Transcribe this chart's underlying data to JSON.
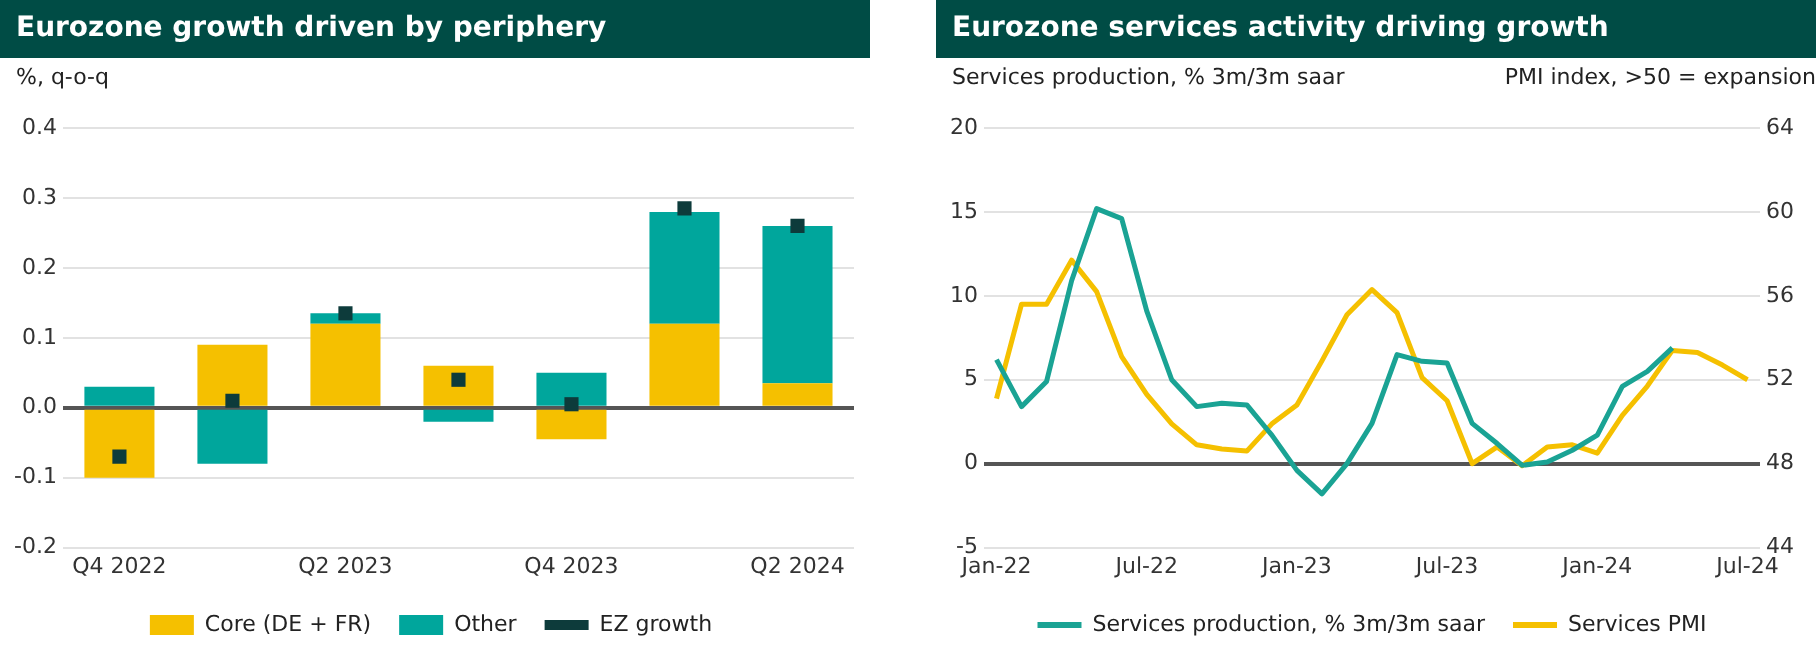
{
  "chart_data": [
    {
      "type": "bar",
      "title": "Eurozone growth driven by periphery",
      "ylabel": "%, q-o-q",
      "stacked": true,
      "categories": [
        "Q4 2022",
        null,
        "Q2 2023",
        null,
        "Q4 2023",
        null,
        "Q2 2024"
      ],
      "series": [
        {
          "name": "Core (DE + FR)",
          "color": "#f5c000",
          "values": [
            -0.1,
            0.09,
            0.12,
            0.06,
            -0.045,
            0.12,
            0.035
          ]
        },
        {
          "name": "Other",
          "color": "#00a69c",
          "values": [
            0.03,
            -0.08,
            0.015,
            -0.02,
            0.05,
            0.16,
            0.225
          ]
        },
        {
          "name": "EZ growth",
          "type": "scatter",
          "color": "#0d3b3b",
          "values": [
            -0.07,
            0.01,
            0.135,
            0.04,
            0.005,
            0.285,
            0.26
          ]
        }
      ],
      "ylim": [
        -0.2,
        0.4
      ],
      "yticks": [
        {
          "value": -0.2,
          "label": "-0.2"
        },
        {
          "value": -0.1,
          "label": "-0.1"
        },
        {
          "value": 0,
          "label": "0.0"
        },
        {
          "value": 0.1,
          "label": "0.1"
        },
        {
          "value": 0.2,
          "label": "0.2"
        },
        {
          "value": 0.3,
          "label": "0.3"
        },
        {
          "value": 0.4,
          "label": "0.4"
        }
      ],
      "grid": "y",
      "legend": "bottom",
      "marker": "square"
    },
    {
      "type": "line",
      "title": "Eurozone services activity driving growth",
      "ylabel": "Services production, % 3m/3m saar",
      "y2label": "PMI index, >50 = expansion",
      "categories": [
        "Jan-22",
        null,
        null,
        null,
        null,
        null,
        "Jul-22",
        null,
        null,
        null,
        null,
        null,
        "Jan-23",
        null,
        null,
        null,
        null,
        null,
        "Jul-23",
        null,
        null,
        null,
        null,
        null,
        "Jan-24",
        null,
        null,
        null,
        null,
        null,
        "Jul-24"
      ],
      "series": [
        {
          "name": "Services production, % 3m/3m saar",
          "color": "#1aa394",
          "values": [
            6.2,
            3.4,
            4.9,
            10.9,
            15.2,
            14.6,
            9.1,
            5.0,
            3.4,
            3.6,
            3.5,
            1.7,
            -0.4,
            -1.8,
            0,
            2.4,
            6.5,
            6.1,
            6.0,
            2.4,
            1.2,
            -0.1,
            0.1,
            0.8,
            1.7,
            4.6,
            5.5,
            6.9,
            null,
            null,
            null
          ]
        },
        {
          "name": "Services PMI",
          "color": "#f5c000",
          "axis": "y2",
          "values": [
            51.1,
            55.6,
            55.6,
            57.7,
            56.2,
            53.1,
            51.3,
            49.9,
            48.9,
            48.7,
            48.6,
            49.9,
            50.8,
            52.9,
            55.1,
            56.3,
            55.2,
            52.1,
            51.0,
            48.0,
            48.8,
            47.9,
            48.8,
            48.9,
            48.5,
            50.3,
            51.7,
            53.4,
            53.3,
            52.7,
            52.0
          ]
        }
      ],
      "ylim": [
        -5,
        20
      ],
      "yticks": [
        -5,
        0,
        5,
        10,
        15,
        20
      ],
      "y2lim": [
        44,
        64
      ],
      "y2ticks": [
        44,
        48,
        52,
        56,
        60,
        64
      ],
      "grid": "y",
      "legend": "bottom",
      "marker": "none",
      "line_style": "solid"
    }
  ]
}
